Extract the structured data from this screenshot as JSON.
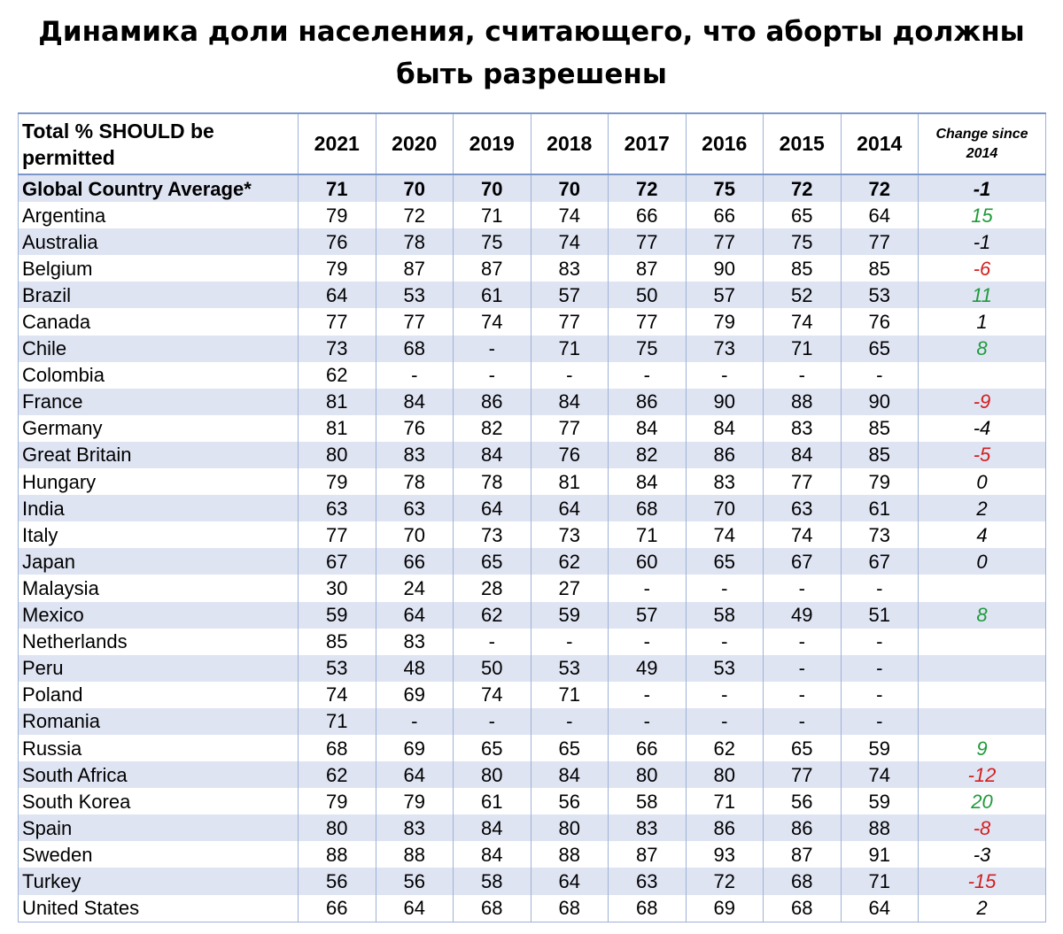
{
  "title": "Динамика доли населения, считающего, что аборты должны быть разрешены",
  "colors": {
    "positive": "#1f9b3a",
    "negative": "#d21f1f",
    "band": "#dfe4f3",
    "border": "#9db2d6"
  },
  "chart_data": {
    "type": "table",
    "title": "Динамика доли населения, считающего, что аборты должны быть разрешены",
    "columns": [
      "Total % SHOULD be permitted",
      "2021",
      "2020",
      "2019",
      "2018",
      "2017",
      "2016",
      "2015",
      "2014",
      "Change since 2014"
    ],
    "rows": [
      {
        "country": "Global Country Average*",
        "values": [
          "71",
          "70",
          "70",
          "70",
          "72",
          "75",
          "72",
          "72"
        ],
        "change": "-1",
        "trend": "neutral"
      },
      {
        "country": "Argentina",
        "values": [
          "79",
          "72",
          "71",
          "74",
          "66",
          "66",
          "65",
          "64"
        ],
        "change": "15",
        "trend": "positive"
      },
      {
        "country": "Australia",
        "values": [
          "76",
          "78",
          "75",
          "74",
          "77",
          "77",
          "75",
          "77"
        ],
        "change": "-1",
        "trend": "neutral"
      },
      {
        "country": "Belgium",
        "values": [
          "79",
          "87",
          "87",
          "83",
          "87",
          "90",
          "85",
          "85"
        ],
        "change": "-6",
        "trend": "negative"
      },
      {
        "country": "Brazil",
        "values": [
          "64",
          "53",
          "61",
          "57",
          "50",
          "57",
          "52",
          "53"
        ],
        "change": "11",
        "trend": "positive"
      },
      {
        "country": "Canada",
        "values": [
          "77",
          "77",
          "74",
          "77",
          "77",
          "79",
          "74",
          "76"
        ],
        "change": "1",
        "trend": "neutral"
      },
      {
        "country": "Chile",
        "values": [
          "73",
          "68",
          "-",
          "71",
          "75",
          "73",
          "71",
          "65"
        ],
        "change": "8",
        "trend": "positive"
      },
      {
        "country": "Colombia",
        "values": [
          "62",
          "-",
          "-",
          "-",
          "-",
          "-",
          "-",
          "-"
        ],
        "change": "",
        "trend": "neutral"
      },
      {
        "country": "France",
        "values": [
          "81",
          "84",
          "86",
          "84",
          "86",
          "90",
          "88",
          "90"
        ],
        "change": "-9",
        "trend": "negative"
      },
      {
        "country": "Germany",
        "values": [
          "81",
          "76",
          "82",
          "77",
          "84",
          "84",
          "83",
          "85"
        ],
        "change": "-4",
        "trend": "neutral"
      },
      {
        "country": "Great Britain",
        "values": [
          "80",
          "83",
          "84",
          "76",
          "82",
          "86",
          "84",
          "85"
        ],
        "change": "-5",
        "trend": "negative"
      },
      {
        "country": "Hungary",
        "values": [
          "79",
          "78",
          "78",
          "81",
          "84",
          "83",
          "77",
          "79"
        ],
        "change": "0",
        "trend": "neutral"
      },
      {
        "country": "India",
        "values": [
          "63",
          "63",
          "64",
          "64",
          "68",
          "70",
          "63",
          "61"
        ],
        "change": "2",
        "trend": "neutral"
      },
      {
        "country": "Italy",
        "values": [
          "77",
          "70",
          "73",
          "73",
          "71",
          "74",
          "74",
          "73"
        ],
        "change": "4",
        "trend": "neutral"
      },
      {
        "country": "Japan",
        "values": [
          "67",
          "66",
          "65",
          "62",
          "60",
          "65",
          "67",
          "67"
        ],
        "change": "0",
        "trend": "neutral"
      },
      {
        "country": "Malaysia",
        "values": [
          "30",
          "24",
          "28",
          "27",
          "-",
          "-",
          "-",
          "-"
        ],
        "change": "",
        "trend": "neutral"
      },
      {
        "country": "Mexico",
        "values": [
          "59",
          "64",
          "62",
          "59",
          "57",
          "58",
          "49",
          "51"
        ],
        "change": "8",
        "trend": "positive"
      },
      {
        "country": "Netherlands",
        "values": [
          "85",
          "83",
          "-",
          "-",
          "-",
          "-",
          "-",
          "-"
        ],
        "change": "",
        "trend": "neutral"
      },
      {
        "country": "Peru",
        "values": [
          "53",
          "48",
          "50",
          "53",
          "49",
          "53",
          "-",
          "-"
        ],
        "change": "",
        "trend": "neutral"
      },
      {
        "country": "Poland",
        "values": [
          "74",
          "69",
          "74",
          "71",
          "-",
          "-",
          "-",
          "-"
        ],
        "change": "",
        "trend": "neutral"
      },
      {
        "country": "Romania",
        "values": [
          "71",
          "-",
          "-",
          "-",
          "-",
          "-",
          "-",
          "-"
        ],
        "change": "",
        "trend": "neutral"
      },
      {
        "country": "Russia",
        "values": [
          "68",
          "69",
          "65",
          "65",
          "66",
          "62",
          "65",
          "59"
        ],
        "change": "9",
        "trend": "positive"
      },
      {
        "country": "South Africa",
        "values": [
          "62",
          "64",
          "80",
          "84",
          "80",
          "80",
          "77",
          "74"
        ],
        "change": "-12",
        "trend": "negative"
      },
      {
        "country": "South Korea",
        "values": [
          "79",
          "79",
          "61",
          "56",
          "58",
          "71",
          "56",
          "59"
        ],
        "change": "20",
        "trend": "positive"
      },
      {
        "country": "Spain",
        "values": [
          "80",
          "83",
          "84",
          "80",
          "83",
          "86",
          "86",
          "88"
        ],
        "change": "-8",
        "trend": "negative"
      },
      {
        "country": "Sweden",
        "values": [
          "88",
          "88",
          "84",
          "88",
          "87",
          "93",
          "87",
          "91"
        ],
        "change": "-3",
        "trend": "neutral"
      },
      {
        "country": "Turkey",
        "values": [
          "56",
          "56",
          "58",
          "64",
          "63",
          "72",
          "68",
          "71"
        ],
        "change": "-15",
        "trend": "negative"
      },
      {
        "country": "United States",
        "values": [
          "66",
          "64",
          "68",
          "68",
          "68",
          "69",
          "68",
          "64"
        ],
        "change": "2",
        "trend": "neutral"
      }
    ]
  }
}
